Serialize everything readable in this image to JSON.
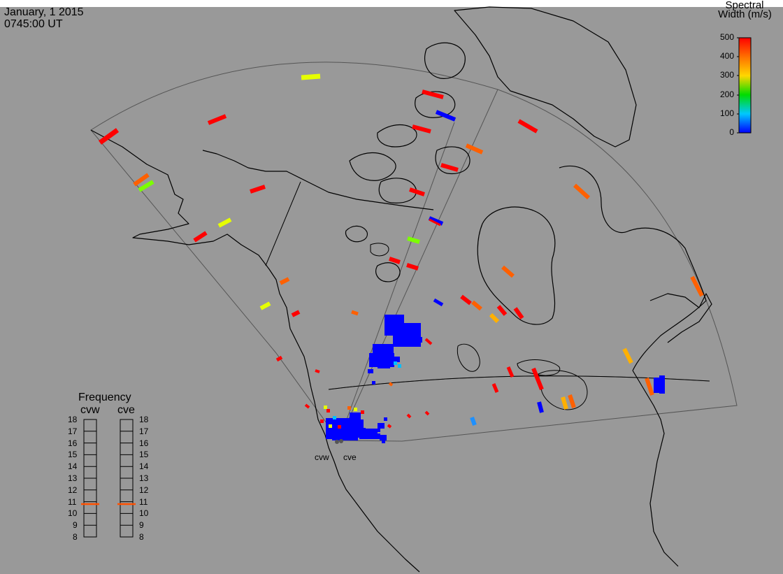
{
  "timestamp": {
    "date": "January, 1 2015",
    "time": "0745:00 UT"
  },
  "colorbar": {
    "title_line1": "Spectral",
    "title_line2": "Width (m/s)",
    "ticks": [
      "500",
      "400",
      "300",
      "200",
      "100",
      "0"
    ],
    "range": [
      0,
      500
    ],
    "colors": [
      "#0000ff",
      "#00c8ff",
      "#00dc00",
      "#ffd700",
      "#ff7000",
      "#ff0000"
    ]
  },
  "frequency_panel": {
    "title": "Frequency",
    "radars": [
      "cvw",
      "cve"
    ],
    "ticks": [
      "18",
      "17",
      "16",
      "15",
      "14",
      "13",
      "12",
      "11",
      "10",
      "9",
      "8"
    ],
    "cvw_value_mhz": 10.8,
    "cve_value_mhz": 10.8,
    "marker_color": "#ff5000"
  },
  "radar_sites": [
    "cvw",
    "cve"
  ],
  "colors": {
    "background": "#999999",
    "coastline": "#000000",
    "fov_outline": "#555555"
  }
}
